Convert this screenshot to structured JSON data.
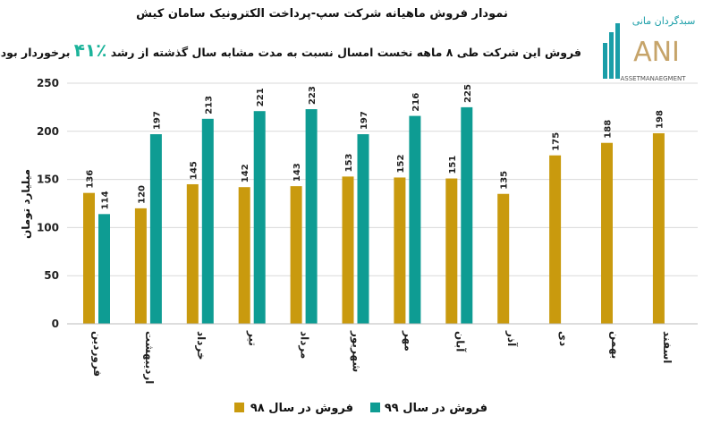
{
  "title": "نمودار فروش ماهیانه شرکت سپ-پرداخت الکترونیک سامان کیش",
  "subtitle": {
    "before": "فروش این شرکت طی ۸ ماهه نخست امسال نسبت به مدت مشابه سال گذشته از رشد",
    "percent": "٪۴۱",
    "after": "برخوردار بوده است."
  },
  "logo": {
    "brand_fa": "سبدگردان مانی",
    "brand_en": "ANI",
    "tagline": "ASSETMANAEGMENT"
  },
  "colors": {
    "s98": "#C99A0E",
    "s99": "#0E9C93"
  },
  "chart_data": {
    "type": "bar",
    "title": "نمودار فروش ماهیانه شرکت سپ-پرداخت الکترونیک سامان کیش",
    "xlabel": "",
    "ylabel": "میلیارد تومان",
    "ylim": [
      0,
      250
    ],
    "yticks": [
      "0",
      "50",
      "100",
      "150",
      "200",
      "250"
    ],
    "grid": true,
    "legend_position": "bottom",
    "categories": [
      "فروردین",
      "اردیبهشت",
      "خرداد",
      "تیر",
      "مرداد",
      "شهریور",
      "مهر",
      "آبان",
      "آذر",
      "دی",
      "بهمن",
      "اسفند"
    ],
    "series": [
      {
        "name": "فروش در سال ۹۸",
        "values": [
          136,
          120,
          145,
          142,
          143,
          153,
          152,
          151,
          135,
          175,
          188,
          198
        ]
      },
      {
        "name": "فروش در سال ۹۹",
        "values": [
          114,
          197,
          213,
          221,
          223,
          197,
          216,
          225,
          null,
          null,
          null,
          null
        ]
      }
    ]
  }
}
